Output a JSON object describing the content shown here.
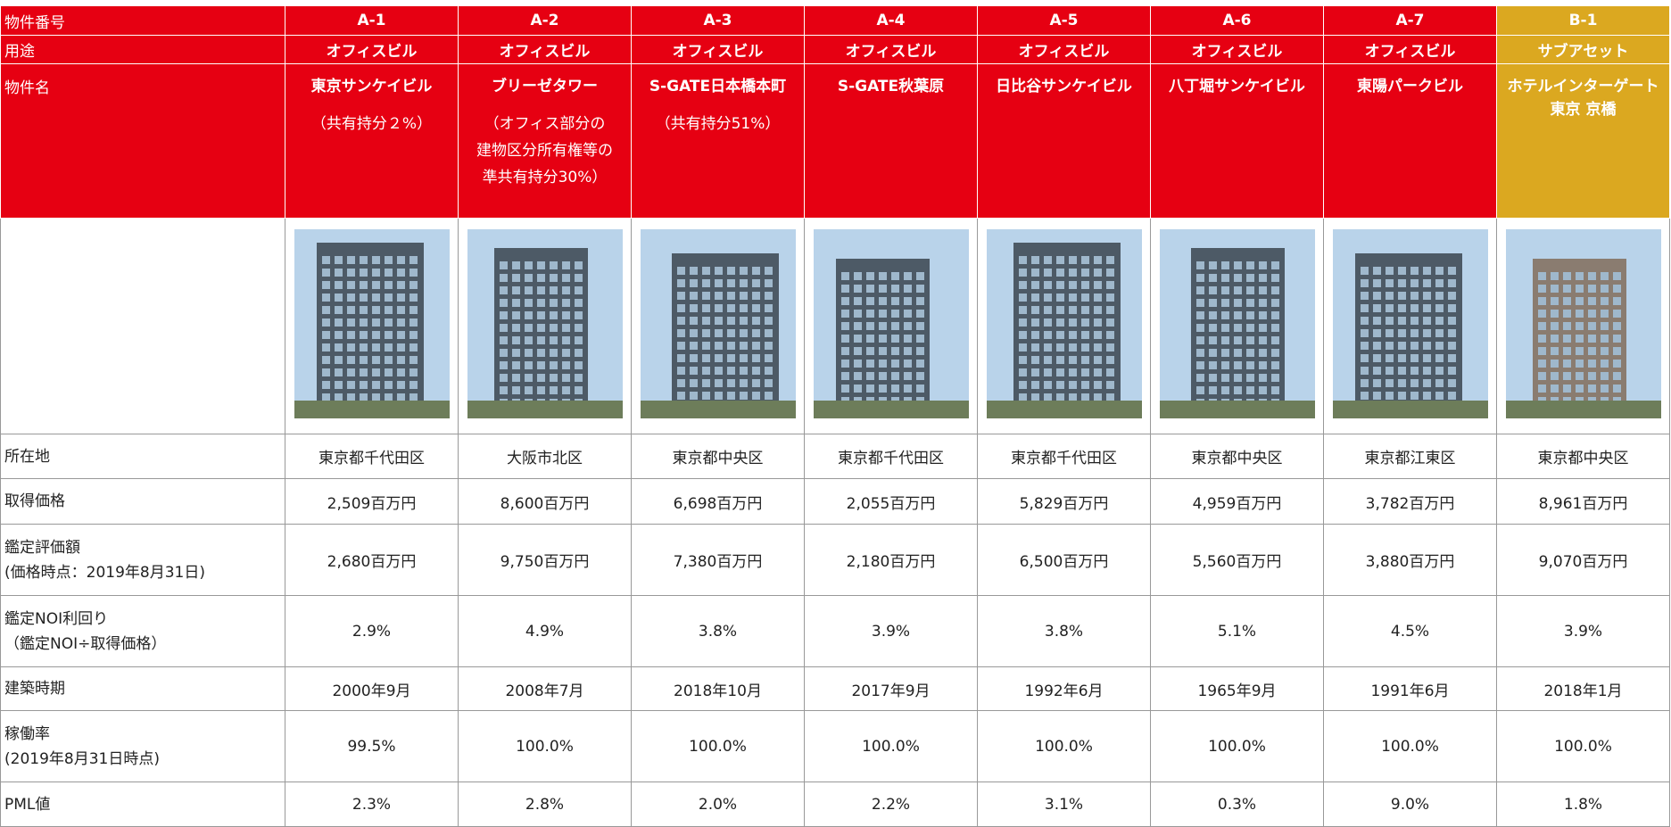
{
  "header_labels": {
    "id": "物件番号",
    "use": "用途",
    "name": "物件名"
  },
  "row_labels": {
    "location": [
      "所在地"
    ],
    "price": [
      "取得価格"
    ],
    "appraisal": [
      "鑑定評価額",
      "(価格時点：2019年8月31日)"
    ],
    "noi": [
      "鑑定NOI利回り",
      "（鑑定NOI÷取得価格）"
    ],
    "built": [
      "建築時期"
    ],
    "occupancy": [
      "稼働率",
      "(2019年8月31日時点)"
    ],
    "pml": [
      "PML値"
    ]
  },
  "properties": [
    {
      "id": "A-1",
      "use": "オフィスビル",
      "name": [
        "東京サンケイビル"
      ],
      "note": [
        "（共有持分２%）"
      ],
      "color": "#e60012",
      "location": "東京都千代田区",
      "price": "2,509百万円",
      "appraisal": "2,680百万円",
      "noi": "2.9%",
      "built": "2000年9月",
      "occupancy": "99.5%",
      "pml": "2.3%"
    },
    {
      "id": "A-2",
      "use": "オフィスビル",
      "name": [
        "ブリーゼタワー"
      ],
      "note": [
        "（オフィス部分の",
        "建物区分所有権等の",
        "準共有持分30%）"
      ],
      "color": "#e60012",
      "location": "大阪市北区",
      "price": "8,600百万円",
      "appraisal": "9,750百万円",
      "noi": "4.9%",
      "built": "2008年7月",
      "occupancy": "100.0%",
      "pml": "2.8%"
    },
    {
      "id": "A-3",
      "use": "オフィスビル",
      "name": [
        "S-GATE日本橋本町"
      ],
      "note": [
        "（共有持分51%）"
      ],
      "color": "#e60012",
      "location": "東京都中央区",
      "price": "6,698百万円",
      "appraisal": "7,380百万円",
      "noi": "3.8%",
      "built": "2018年10月",
      "occupancy": "100.0%",
      "pml": "2.0%"
    },
    {
      "id": "A-4",
      "use": "オフィスビル",
      "name": [
        "S-GATE秋葉原"
      ],
      "note": [],
      "color": "#e60012",
      "location": "東京都千代田区",
      "price": "2,055百万円",
      "appraisal": "2,180百万円",
      "noi": "3.9%",
      "built": "2017年9月",
      "occupancy": "100.0%",
      "pml": "2.2%"
    },
    {
      "id": "A-5",
      "use": "オフィスビル",
      "name": [
        "日比谷サンケイビル"
      ],
      "note": [],
      "color": "#e60012",
      "location": "東京都千代田区",
      "price": "5,829百万円",
      "appraisal": "6,500百万円",
      "noi": "3.8%",
      "built": "1992年6月",
      "occupancy": "100.0%",
      "pml": "3.1%"
    },
    {
      "id": "A-6",
      "use": "オフィスビル",
      "name": [
        "八丁堀サンケイビル"
      ],
      "note": [],
      "color": "#e60012",
      "location": "東京都中央区",
      "price": "4,959百万円",
      "appraisal": "5,560百万円",
      "noi": "5.1%",
      "built": "1965年9月",
      "occupancy": "100.0%",
      "pml": "0.3%"
    },
    {
      "id": "A-7",
      "use": "オフィスビル",
      "name": [
        "東陽パークビル"
      ],
      "note": [],
      "color": "#e60012",
      "location": "東京都江東区",
      "price": "3,782百万円",
      "appraisal": "3,880百万円",
      "noi": "4.5%",
      "built": "1991年6月",
      "occupancy": "100.0%",
      "pml": "9.0%"
    },
    {
      "id": "B-1",
      "use": "サブアセット",
      "name": [
        "ホテルインターゲート",
        "東京 京橋"
      ],
      "note": [],
      "color": "#dba820",
      "location": "東京都中央区",
      "price": "8,961百万円",
      "appraisal": "9,070百万円",
      "noi": "3.9%",
      "built": "2018年1月",
      "occupancy": "100.0%",
      "pml": "1.8%"
    }
  ]
}
